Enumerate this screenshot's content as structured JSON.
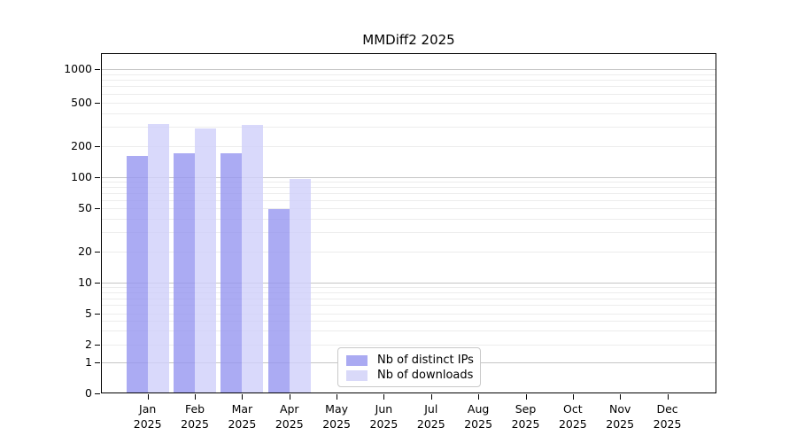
{
  "title": "MMDiff2 2025",
  "chart_data": {
    "type": "bar",
    "title": "MMDiff2 2025",
    "yscale": "log (0 pinned at baseline)",
    "grid": "horizontal log minor+major gridlines",
    "ylim": [
      0,
      1340
    ],
    "y_ticks": [
      0,
      1,
      2,
      5,
      10,
      20,
      50,
      100,
      200,
      500,
      1000
    ],
    "categories": [
      "Jan 2025",
      "Feb 2025",
      "Mar 2025",
      "Apr 2025",
      "May 2025",
      "Jun 2025",
      "Jul 2025",
      "Aug 2025",
      "Sep 2025",
      "Oct 2025",
      "Nov 2025",
      "Dec 2025"
    ],
    "series": [
      {
        "name": "Nb of distinct IPs",
        "color": "#aaaaf2",
        "fill": "rgba(150,150,240,0.8)",
        "values": [
          160,
          170,
          170,
          49,
          0,
          0,
          0,
          0,
          0,
          0,
          0,
          0
        ]
      },
      {
        "name": "Nb of downloads",
        "color": "#d9d9f9",
        "fill": "rgba(208,208,250,0.8)",
        "values": [
          320,
          290,
          315,
          95,
          0,
          0,
          0,
          0,
          0,
          0,
          0,
          0
        ]
      }
    ],
    "legend_position": "inside bottom center"
  },
  "legend": {
    "items": [
      {
        "label": "Nb of distinct IPs",
        "color": "#aaaaf2"
      },
      {
        "label": "Nb of downloads",
        "color": "#d9d9f9"
      }
    ]
  },
  "colors": {
    "grid_minor": "#ececec",
    "grid_major": "#c6c6c6",
    "axis": "#000000",
    "legend_border": "#c9c9c9",
    "background": "#ffffff"
  }
}
